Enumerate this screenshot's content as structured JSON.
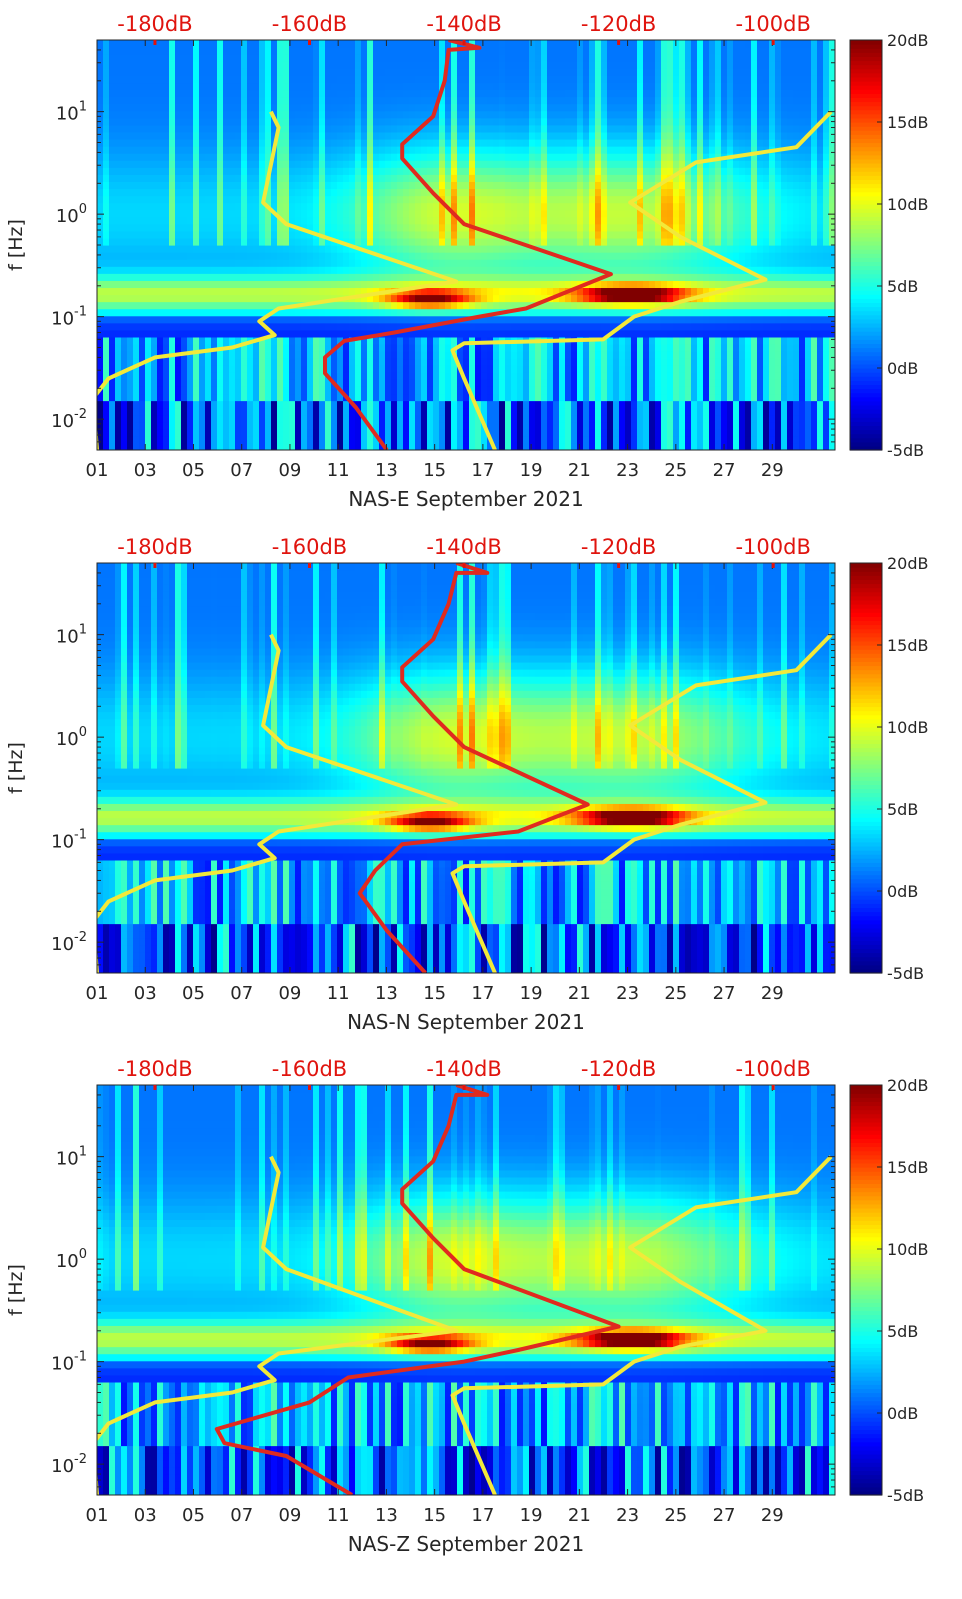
{
  "chart_data": [
    {
      "type": "heatmap",
      "xlabel": "NAS-E September 2021",
      "ylabel": "f [Hz]",
      "x_ticks": [
        "01",
        "03",
        "05",
        "07",
        "09",
        "11",
        "13",
        "15",
        "17",
        "19",
        "21",
        "23",
        "25",
        "27",
        "29"
      ],
      "x_range_days": [
        1,
        31.6
      ],
      "ylim_hz": [
        0.005,
        50
      ],
      "y_scale": "log",
      "y_ticks": [
        {
          "value": 0.01,
          "base": "10",
          "exp": "-2"
        },
        {
          "value": 0.1,
          "base": "10",
          "exp": "-1"
        },
        {
          "value": 1,
          "base": "10",
          "exp": "0"
        },
        {
          "value": 10,
          "base": "10",
          "exp": "1"
        }
      ],
      "top_axis_ticks": [
        "-180dB",
        "-160dB",
        "-140dB",
        "-120dB",
        "-100dB"
      ],
      "top_axis_values_db": [
        -180,
        -160,
        -140,
        -120,
        -100
      ],
      "top_axis_range_db": [
        -187.5,
        -92
      ],
      "colorbar": {
        "ticks": [
          "20dB",
          "15dB",
          "10dB",
          "5dB",
          "0dB",
          "-5dB"
        ],
        "range_db": [
          -5,
          20
        ],
        "colormap": "jet"
      },
      "series": [
        {
          "color": "#f2e93a",
          "points": [
            [
              -187.5,
              0.005
            ],
            [
              -188,
              0.016
            ],
            [
              -186,
              0.025
            ],
            [
              -180,
              0.04
            ],
            [
              -170,
              0.05
            ],
            [
              -164.5,
              0.066
            ],
            [
              -166.5,
              0.09
            ],
            [
              -164,
              0.12
            ],
            [
              -141,
              0.22
            ],
            [
              -163,
              0.8
            ],
            [
              -166,
              1.3
            ],
            [
              -164,
              7
            ],
            [
              -165,
              10
            ]
          ]
        },
        {
          "color": "#f2e93a",
          "points": [
            [
              -136,
              0.005
            ],
            [
              -140,
              0.025
            ],
            [
              -141.5,
              0.047
            ],
            [
              -140,
              0.055
            ],
            [
              -122,
              0.06
            ],
            [
              -118,
              0.1
            ],
            [
              -112,
              0.14
            ],
            [
              -101,
              0.23
            ],
            [
              -112,
              0.6
            ],
            [
              -118.5,
              1.3
            ],
            [
              -110,
              3.2
            ],
            [
              -97,
              4.5
            ],
            [
              -92.5,
              10
            ]
          ]
        },
        {
          "color": "#e02a1f",
          "points": [
            [
              -150,
              0.005
            ],
            [
              -154,
              0.013
            ],
            [
              -158,
              0.028
            ],
            [
              -158,
              0.04
            ],
            [
              -155.5,
              0.058
            ],
            [
              -149,
              0.07
            ],
            [
              -138,
              0.1
            ],
            [
              -132,
              0.12
            ],
            [
              -121,
              0.26
            ],
            [
              -140,
              0.8
            ],
            [
              -144,
              1.6
            ],
            [
              -148,
              3.5
            ],
            [
              -148,
              4.8
            ],
            [
              -144,
              9
            ],
            [
              -142.5,
              20
            ],
            [
              -142,
              40
            ],
            [
              -138,
              42
            ],
            [
              -142,
              50
            ]
          ]
        }
      ]
    },
    {
      "type": "heatmap",
      "xlabel": "NAS-N September 2021",
      "ylabel": "f [Hz]",
      "x_ticks": [
        "01",
        "03",
        "05",
        "07",
        "09",
        "11",
        "13",
        "15",
        "17",
        "19",
        "21",
        "23",
        "25",
        "27",
        "29"
      ],
      "x_range_days": [
        1,
        31.6
      ],
      "ylim_hz": [
        0.005,
        50
      ],
      "y_scale": "log",
      "y_ticks": [
        {
          "value": 0.01,
          "base": "10",
          "exp": "-2"
        },
        {
          "value": 0.1,
          "base": "10",
          "exp": "-1"
        },
        {
          "value": 1,
          "base": "10",
          "exp": "0"
        },
        {
          "value": 10,
          "base": "10",
          "exp": "1"
        }
      ],
      "top_axis_ticks": [
        "-180dB",
        "-160dB",
        "-140dB",
        "-120dB",
        "-100dB"
      ],
      "top_axis_values_db": [
        -180,
        -160,
        -140,
        -120,
        -100
      ],
      "top_axis_range_db": [
        -187.5,
        -92
      ],
      "colorbar": {
        "ticks": [
          "20dB",
          "15dB",
          "10dB",
          "5dB",
          "0dB",
          "-5dB"
        ],
        "range_db": [
          -5,
          20
        ],
        "colormap": "jet"
      },
      "series": [
        {
          "color": "#f2e93a",
          "points": [
            [
              -187.5,
              0.005
            ],
            [
              -188,
              0.016
            ],
            [
              -186,
              0.025
            ],
            [
              -180,
              0.04
            ],
            [
              -170,
              0.05
            ],
            [
              -164.5,
              0.066
            ],
            [
              -166.5,
              0.09
            ],
            [
              -164,
              0.12
            ],
            [
              -141,
              0.22
            ],
            [
              -163,
              0.8
            ],
            [
              -166,
              1.3
            ],
            [
              -164,
              7
            ],
            [
              -165,
              10
            ]
          ]
        },
        {
          "color": "#f2e93a",
          "points": [
            [
              -136,
              0.005
            ],
            [
              -140,
              0.025
            ],
            [
              -141.5,
              0.047
            ],
            [
              -140,
              0.055
            ],
            [
              -122,
              0.06
            ],
            [
              -118,
              0.1
            ],
            [
              -112,
              0.14
            ],
            [
              -101,
              0.23
            ],
            [
              -112,
              0.6
            ],
            [
              -118.5,
              1.3
            ],
            [
              -110,
              3.2
            ],
            [
              -97,
              4.5
            ],
            [
              -92.5,
              10
            ]
          ]
        },
        {
          "color": "#e02a1f",
          "points": [
            [
              -145,
              0.005
            ],
            [
              -150,
              0.013
            ],
            [
              -153.5,
              0.03
            ],
            [
              -151.5,
              0.05
            ],
            [
              -148,
              0.09
            ],
            [
              -133,
              0.12
            ],
            [
              -124,
              0.22
            ],
            [
              -140,
              0.8
            ],
            [
              -144,
              1.6
            ],
            [
              -148,
              3.5
            ],
            [
              -148,
              4.8
            ],
            [
              -144,
              9
            ],
            [
              -142,
              20
            ],
            [
              -141,
              40
            ],
            [
              -137,
              40
            ],
            [
              -141,
              50
            ]
          ]
        }
      ]
    },
    {
      "type": "heatmap",
      "xlabel": "NAS-Z September 2021",
      "ylabel": "f [Hz]",
      "x_ticks": [
        "01",
        "03",
        "05",
        "07",
        "09",
        "11",
        "13",
        "15",
        "17",
        "19",
        "21",
        "23",
        "25",
        "27",
        "29"
      ],
      "x_range_days": [
        1,
        31.6
      ],
      "ylim_hz": [
        0.005,
        50
      ],
      "y_scale": "log",
      "y_ticks": [
        {
          "value": 0.01,
          "base": "10",
          "exp": "-2"
        },
        {
          "value": 0.1,
          "base": "10",
          "exp": "-1"
        },
        {
          "value": 1,
          "base": "10",
          "exp": "0"
        },
        {
          "value": 10,
          "base": "10",
          "exp": "1"
        }
      ],
      "top_axis_ticks": [
        "-180dB",
        "-160dB",
        "-140dB",
        "-120dB",
        "-100dB"
      ],
      "top_axis_values_db": [
        -180,
        -160,
        -140,
        -120,
        -100
      ],
      "top_axis_range_db": [
        -187.5,
        -92
      ],
      "colorbar": {
        "ticks": [
          "20dB",
          "15dB",
          "10dB",
          "5dB",
          "0dB",
          "-5dB"
        ],
        "range_db": [
          -5,
          20
        ],
        "colormap": "jet"
      },
      "series": [
        {
          "color": "#f2e93a",
          "points": [
            [
              -187.5,
              0.005
            ],
            [
              -188,
              0.016
            ],
            [
              -186,
              0.025
            ],
            [
              -180,
              0.04
            ],
            [
              -170,
              0.05
            ],
            [
              -164.5,
              0.066
            ],
            [
              -166.5,
              0.09
            ],
            [
              -164,
              0.12
            ],
            [
              -141,
              0.2
            ],
            [
              -163,
              0.8
            ],
            [
              -166,
              1.3
            ],
            [
              -164,
              7
            ],
            [
              -165,
              10
            ]
          ]
        },
        {
          "color": "#f2e93a",
          "points": [
            [
              -136,
              0.005
            ],
            [
              -140,
              0.025
            ],
            [
              -141.5,
              0.047
            ],
            [
              -140,
              0.055
            ],
            [
              -122,
              0.06
            ],
            [
              -118,
              0.1
            ],
            [
              -112,
              0.14
            ],
            [
              -101,
              0.2
            ],
            [
              -112,
              0.6
            ],
            [
              -118.5,
              1.3
            ],
            [
              -110,
              3.2
            ],
            [
              -97,
              4.5
            ],
            [
              -92.5,
              10
            ]
          ]
        },
        {
          "color": "#e02a1f",
          "points": [
            [
              -154.5,
              0.005
            ],
            [
              -163,
              0.012
            ],
            [
              -171,
              0.016
            ],
            [
              -172,
              0.022
            ],
            [
              -160,
              0.04
            ],
            [
              -155,
              0.07
            ],
            [
              -140,
              0.1
            ],
            [
              -133,
              0.13
            ],
            [
              -120,
              0.22
            ],
            [
              -140,
              0.8
            ],
            [
              -144,
              1.6
            ],
            [
              -148,
              3.5
            ],
            [
              -148,
              4.8
            ],
            [
              -144,
              9
            ],
            [
              -142,
              20
            ],
            [
              -141,
              40
            ],
            [
              -137,
              40
            ],
            [
              -141,
              50
            ]
          ]
        }
      ]
    }
  ]
}
